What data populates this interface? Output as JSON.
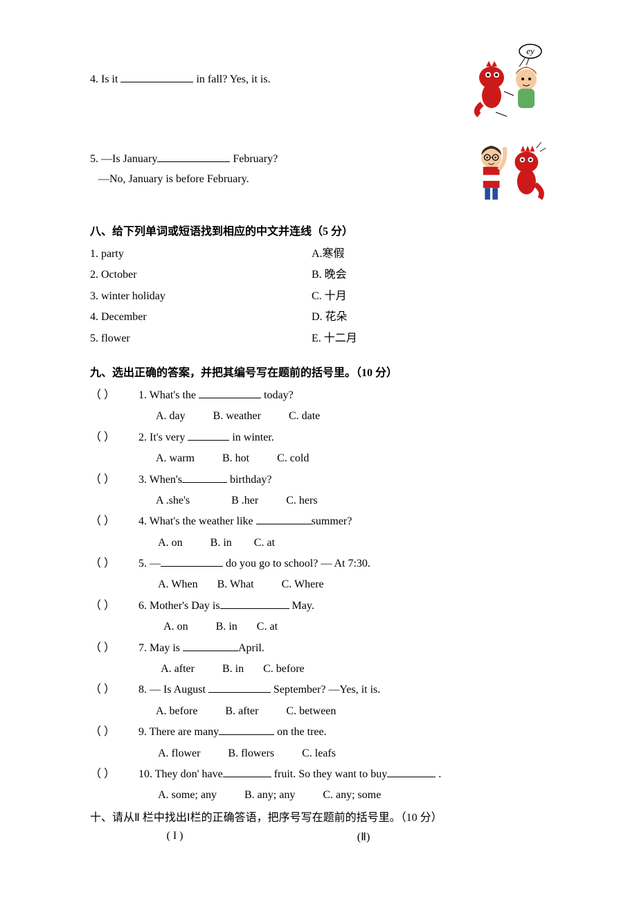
{
  "fill": {
    "q4": {
      "prefix": "4. Is it ",
      "suffix": " in fall? Yes, it is."
    },
    "q5": {
      "line1_prefix": "5. —Is January",
      "line1_suffix": " February?",
      "line2": "—No, January is before February."
    }
  },
  "section8": {
    "title": "八、给下列单词或短语找到相应的中文并连线（5 分）",
    "rows": [
      {
        "left": "1. party",
        "right": "A.寒假"
      },
      {
        "left": "2. October",
        "right": "B. 晚会"
      },
      {
        "left": "3. winter holiday",
        "right": "C. 十月"
      },
      {
        "left": "4. December",
        "right": "D. 花朵"
      },
      {
        "left": "5. flower",
        "right": "E. 十二月"
      }
    ]
  },
  "section9": {
    "title": "九、选出正确的答案，并把其编号写在题前的括号里。（10 分）",
    "items": [
      {
        "n": "1",
        "q_pre": "What's the ",
        "q_post": " today?",
        "blank": "blank-90",
        "opts": "A. day          B. weather          C. date"
      },
      {
        "n": "2",
        "q_pre": "It's very ",
        "q_post": " in winter.",
        "blank": "blank-60",
        "opts": "A. warm          B. hot          C. cold"
      },
      {
        "n": "3",
        "q_pre": "When's",
        "q_post": " birthday?",
        "blank": "blank-65",
        "opts": "A .she's               B .her          C. hers"
      },
      {
        "n": "4",
        "q_pre": "What's the weather like ",
        "q_post": "summer?",
        "blank": "blank-80",
        "opts": " A. on          B. in        C. at"
      },
      {
        "n": "5",
        "q_pre": "—",
        "q_post": "  do you go to school? — At 7:30.",
        "blank": "blank-90",
        "opts": " A. When       B. What          C. Where"
      },
      {
        "n": "6",
        "q_pre": "Mother's Day is",
        "q_post": " May.",
        "blank": "blank-100",
        "opts": "   A. on          B. in       C. at"
      },
      {
        "n": "7",
        "q_pre": "May is ",
        "q_post": "April.",
        "blank": "blank-80",
        "opts": "  A. after          B. in       C. before"
      },
      {
        "n": "8",
        "q_pre": "— Is August ",
        "q_post": " September?    —Yes, it is.",
        "blank": "blank-90",
        "opts": "A. before          B. after          C. between"
      },
      {
        "n": "9",
        "q_pre": "There are many",
        "q_post": " on the tree.",
        "blank": "blank-80",
        "opts": " A. flower          B. flowers          C. leafs"
      },
      {
        "n": "10",
        "q_pre": "They don' have",
        "q_post": " fruit. So they want to buy",
        "q_post2": "  .",
        "blank": "blank-70",
        "blank2": "blank-70",
        "opts": " A. some; any          B. any; any          C. any; some"
      }
    ]
  },
  "section10": {
    "title": "十、请从Ⅱ 栏中找出Ⅰ栏的正确答语，把序号写在题前的括号里。（10 分）",
    "col1": "( I )",
    "col2": "(Ⅱ)"
  },
  "paren": "（       ）",
  "qprefix": ". ",
  "colors": {
    "text": "#000000",
    "bg": "#ffffff",
    "dino": "#cc1a1a",
    "skin": "#f6c9a0",
    "hair": "#b56b2e",
    "shirt_girl": "#5fae5f",
    "shirt_boy_red": "#cc1a1a",
    "shirt_boy_white": "#ffffff",
    "pants": "#2a4aa0"
  }
}
